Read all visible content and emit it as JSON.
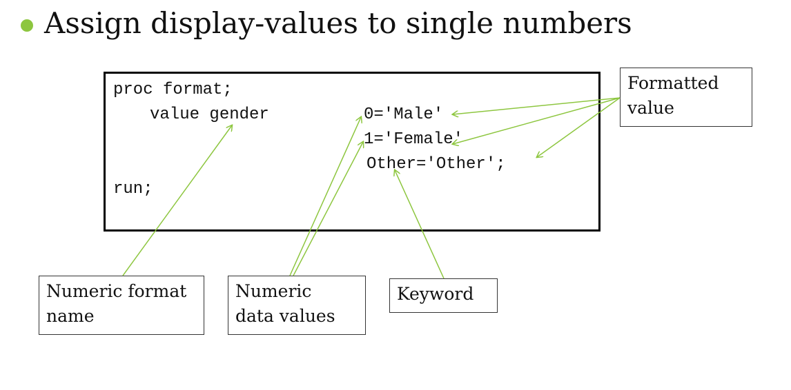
{
  "title": "Assign display-values to single numbers",
  "accent_color": "#8dc63f",
  "code": {
    "line_1": "proc format;",
    "line_2_keyword": "value gender",
    "line_2_value": "0='Male'",
    "line_3": "1='Female'",
    "line_4": "Other='Other';",
    "line_5": "run;"
  },
  "callouts": {
    "formatted_value": [
      "Formatted",
      "value"
    ],
    "numeric_format_name": [
      "Numeric format",
      "name"
    ],
    "numeric_data_values": [
      "Numeric",
      "data values"
    ],
    "keyword": [
      "Keyword"
    ]
  }
}
